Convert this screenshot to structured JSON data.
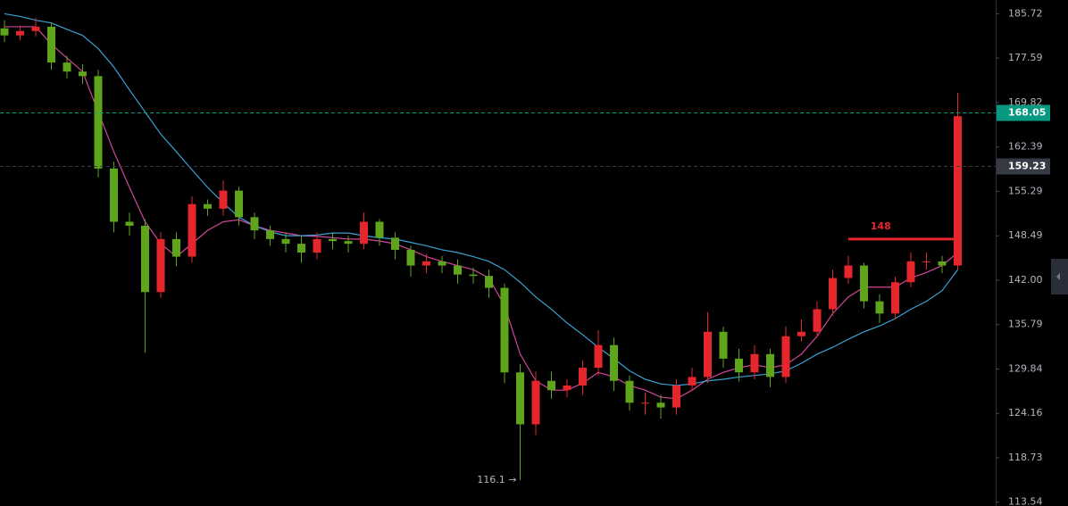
{
  "chart_data": {
    "type": "candlestick",
    "log_scale": true,
    "ylim": [
      113.1,
      188.3
    ],
    "yticks": [
      185.72,
      177.59,
      169.82,
      162.39,
      155.29,
      148.49,
      {
        "value": 142,
        "label": "142.00"
      },
      135.79,
      129.84,
      124.16,
      118.73,
      113.54
    ],
    "up_color": "#e5262d",
    "down_color": "#5ea51c",
    "open": [
      183.0,
      181.7,
      182.5,
      183.3,
      176.8,
      175.2,
      174.4,
      158.9,
      150.6,
      150.0,
      140.3,
      148.0,
      145.4,
      153.3,
      152.6,
      155.4,
      151.3,
      149.3,
      148.0,
      147.3,
      146.0,
      148.0,
      147.7,
      147.3,
      150.6,
      148.2,
      146.4,
      144.1,
      144.7,
      144.1,
      142.8,
      142.6,
      140.9,
      129.4,
      122.8,
      128.3,
      127.1,
      127.7,
      130.0,
      133.0,
      128.3,
      125.5,
      125.5,
      124.9,
      127.7,
      128.8,
      134.8,
      131.2,
      129.4,
      131.8,
      128.8,
      134.2,
      134.8,
      137.9,
      142.3,
      144.1,
      139.0,
      137.3,
      141.7,
      144.7,
      144.7,
      144.1
    ],
    "high": [
      184.5,
      183.5,
      185.0,
      184.0,
      178.0,
      176.5,
      175.5,
      160.0,
      152.0,
      151.0,
      149.0,
      149.0,
      154.5,
      154.0,
      157.0,
      156.0,
      152.0,
      150.0,
      149.0,
      148.5,
      149.0,
      149.0,
      148.5,
      152.0,
      151.0,
      149.0,
      147.0,
      145.8,
      145.5,
      145.0,
      143.8,
      143.5,
      141.5,
      130.5,
      129.5,
      129.5,
      128.5,
      131.0,
      135.0,
      134.0,
      129.0,
      126.8,
      126.5,
      128.5,
      130.0,
      137.5,
      135.5,
      132.5,
      133.0,
      132.5,
      135.5,
      136.5,
      139.0,
      143.5,
      145.5,
      144.5,
      140.0,
      142.5,
      146.0,
      146.0,
      145.5,
      171.5
    ],
    "low": [
      180.5,
      180.8,
      181.5,
      175.5,
      174.0,
      173.0,
      157.5,
      149.0,
      148.5,
      132.0,
      139.5,
      144.0,
      144.5,
      151.5,
      151.5,
      150.0,
      148.0,
      147.0,
      146.0,
      144.5,
      145.0,
      146.5,
      146.0,
      146.5,
      147.0,
      145.0,
      142.5,
      143.0,
      143.0,
      141.5,
      141.5,
      139.5,
      128.0,
      116.1,
      121.5,
      126.0,
      126.2,
      126.5,
      129.0,
      127.0,
      124.5,
      124.0,
      123.5,
      124.0,
      127.0,
      128.0,
      130.0,
      128.2,
      128.5,
      127.5,
      128.0,
      133.5,
      134.0,
      137.0,
      141.5,
      138.0,
      136.0,
      136.5,
      141.0,
      143.5,
      143.0,
      143.5
    ],
    "close": [
      181.7,
      182.5,
      183.3,
      176.8,
      175.2,
      174.4,
      158.9,
      150.6,
      150.0,
      140.3,
      148.0,
      145.4,
      153.3,
      152.6,
      155.4,
      151.3,
      149.3,
      148.0,
      147.3,
      146.0,
      148.0,
      147.7,
      147.3,
      150.6,
      148.2,
      146.4,
      144.1,
      144.7,
      144.1,
      142.8,
      142.6,
      140.9,
      129.4,
      122.8,
      128.3,
      127.1,
      127.7,
      130.0,
      133.0,
      128.3,
      125.5,
      125.5,
      124.9,
      127.7,
      128.8,
      134.8,
      131.2,
      129.4,
      131.8,
      128.8,
      134.2,
      134.8,
      137.9,
      142.3,
      144.1,
      139.0,
      137.3,
      141.7,
      144.7,
      144.7,
      144.1,
      167.5
    ],
    "moving_averages": [
      {
        "color": "#d0479a",
        "values": [
          183.3,
          183.3,
          183.3,
          180.1,
          177.6,
          175.2,
          168.2,
          161.6,
          155.9,
          150.6,
          147.3,
          145.4,
          147.3,
          149.3,
          150.6,
          150.9,
          150.0,
          149.3,
          148.9,
          148.5,
          148.4,
          148.2,
          148.0,
          148.0,
          147.7,
          147.3,
          146.4,
          145.4,
          144.7,
          144.1,
          143.5,
          142.3,
          138.4,
          131.8,
          128.3,
          127.1,
          127.1,
          128.0,
          129.4,
          128.8,
          127.7,
          127.1,
          126.2,
          126.0,
          127.1,
          128.5,
          129.4,
          130.0,
          130.4,
          130.0,
          130.4,
          131.8,
          134.2,
          137.3,
          139.6,
          141.0,
          141.0,
          141.0,
          142.3,
          143.1,
          144.1,
          146.0
        ]
      },
      {
        "color": "#3aa0d0",
        "values": [
          185.7,
          185.2,
          184.5,
          184.0,
          182.8,
          181.7,
          179.3,
          176.0,
          172.0,
          168.2,
          164.5,
          161.6,
          158.7,
          155.9,
          153.5,
          151.3,
          150.0,
          149.1,
          148.5,
          148.5,
          148.6,
          148.9,
          148.9,
          148.5,
          148.2,
          148.0,
          147.5,
          147.0,
          146.4,
          146.0,
          145.4,
          144.7,
          143.5,
          141.7,
          139.6,
          137.9,
          136.0,
          134.4,
          132.7,
          131.2,
          129.6,
          128.5,
          127.9,
          127.7,
          127.9,
          128.3,
          128.5,
          128.8,
          129.0,
          129.2,
          129.6,
          130.6,
          131.8,
          132.7,
          133.8,
          134.8,
          135.6,
          136.6,
          137.9,
          139.0,
          140.5,
          143.5
        ]
      }
    ],
    "price_lines": [
      {
        "value": 168.05,
        "color": "#089981"
      },
      {
        "value": 159.23,
        "color": "#363a45"
      }
    ],
    "level": {
      "value": 148,
      "label": "148",
      "color": "#e5262d"
    },
    "low_marker": {
      "value": 116.1,
      "label": "116.1 →"
    }
  }
}
